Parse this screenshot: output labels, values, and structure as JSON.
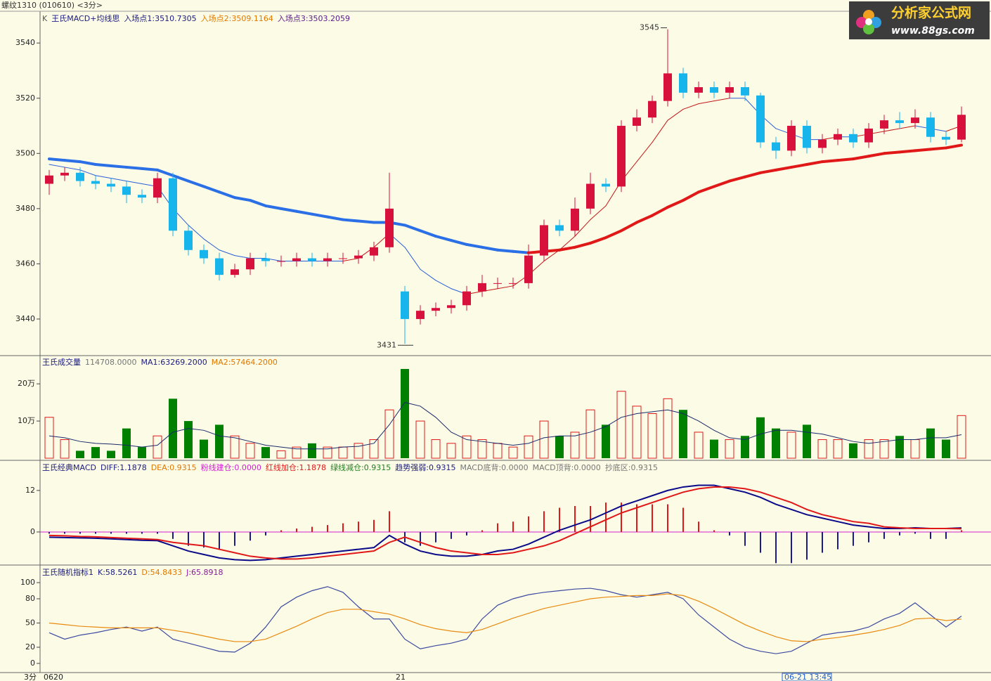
{
  "window": {
    "title": "螺纹1310 (010610) <3分>",
    "logo": {
      "name": "分析家公式网",
      "url": "www.88gs.com"
    }
  },
  "time_axis": {
    "unit": "3分",
    "labels": [
      "0620",
      "21"
    ],
    "cursor": "06-21 13:45"
  },
  "chart_data": [
    {
      "type": "candlestick",
      "legend": [
        "K",
        "王氏MACD+均线思",
        "入场点1:3510.7305",
        "入场点2:3509.1164",
        "入场点3:3503.2059"
      ],
      "legend_colors": [
        "#555555",
        "#1a1a80",
        "#1a1a80",
        "#e07800",
        "#5a1a8a"
      ],
      "open": [
        3489,
        3492,
        3493,
        3490,
        3489,
        3488,
        3485,
        3484,
        3491,
        3472,
        3465,
        3462,
        3456,
        3458,
        3462,
        3461,
        3461,
        3462,
        3461,
        3462,
        3462,
        3463,
        3466,
        3450,
        3440,
        3443,
        3444,
        3445,
        3450,
        3453,
        3453,
        3453,
        3463,
        3474,
        3472,
        3480,
        3489,
        3488,
        3510,
        3513,
        3519,
        3529,
        3522,
        3524,
        3522,
        3524,
        3521,
        3504,
        3501,
        3510,
        3502,
        3505,
        3507,
        3504,
        3509,
        3512,
        3511,
        3513,
        3506,
        3505
      ],
      "high": [
        3494,
        3495,
        3495,
        3492,
        3491,
        3490,
        3487,
        3493,
        3493,
        3474,
        3467,
        3464,
        3460,
        3464,
        3464,
        3463,
        3464,
        3464,
        3464,
        3464,
        3465,
        3468,
        3493,
        3452,
        3445,
        3446,
        3447,
        3452,
        3456,
        3455,
        3455,
        3467,
        3476,
        3476,
        3484,
        3493,
        3491,
        3512,
        3516,
        3521,
        3545,
        3531,
        3526,
        3526,
        3526,
        3526,
        3522,
        3506,
        3512,
        3512,
        3507,
        3509,
        3509,
        3511,
        3514,
        3515,
        3516,
        3515,
        3508,
        3517
      ],
      "low": [
        3485,
        3490,
        3488,
        3487,
        3486,
        3482,
        3482,
        3482,
        3470,
        3463,
        3460,
        3454,
        3455,
        3456,
        3459,
        3459,
        3459,
        3459,
        3459,
        3460,
        3460,
        3461,
        3464,
        3431,
        3438,
        3441,
        3442,
        3443,
        3448,
        3451,
        3451,
        3451,
        3461,
        3470,
        3470,
        3478,
        3486,
        3486,
        3508,
        3511,
        3517,
        3520,
        3520,
        3520,
        3520,
        3519,
        3502,
        3498,
        3499,
        3500,
        3500,
        3503,
        3502,
        3502,
        3507,
        3509,
        3509,
        3504,
        3503,
        3504
      ],
      "close": [
        3492,
        3493,
        3490,
        3489,
        3488,
        3485,
        3484,
        3491,
        3472,
        3465,
        3462,
        3456,
        3458,
        3462,
        3461,
        3461,
        3462,
        3461,
        3462,
        3462,
        3463,
        3466,
        3480,
        3440,
        3443,
        3444,
        3445,
        3450,
        3453,
        3453,
        3453,
        3463,
        3474,
        3472,
        3480,
        3489,
        3488,
        3510,
        3513,
        3519,
        3529,
        3522,
        3524,
        3522,
        3524,
        3521,
        3504,
        3501,
        3510,
        3502,
        3505,
        3507,
        3504,
        3509,
        3512,
        3511,
        3513,
        3506,
        3505,
        3514
      ],
      "up_color": "#d8103c",
      "down_color": "#18b4ec",
      "lines": [
        {
          "color": "#2a6fe6",
          "rising_color": "#e01818",
          "width": 4,
          "values": [
            3498,
            3497.5,
            3497,
            3496,
            3495.5,
            3495,
            3494.5,
            3494,
            3492,
            3490,
            3488,
            3486,
            3484,
            3483,
            3481,
            3480,
            3479,
            3478,
            3477,
            3476,
            3475.5,
            3475,
            3475,
            3474,
            3472,
            3470,
            3468.5,
            3467,
            3466,
            3465,
            3464.5,
            3464,
            3464.5,
            3465,
            3466,
            3467.5,
            3469.5,
            3472,
            3475,
            3477.5,
            3480.5,
            3483,
            3486,
            3488,
            3490,
            3491.5,
            3493,
            3494,
            3495,
            3496,
            3497,
            3497.5,
            3498,
            3499,
            3500,
            3500.5,
            3501,
            3501.5,
            3502,
            3503
          ]
        },
        {
          "color": "#2a5fd8",
          "rising_color": "#c41818",
          "width": 1,
          "values": [
            3496,
            3495,
            3494,
            3492,
            3491,
            3490,
            3489,
            3488,
            3480,
            3474,
            3469,
            3465,
            3463,
            3462,
            3462,
            3461,
            3461,
            3461,
            3461,
            3461,
            3462,
            3466,
            3471,
            3466,
            3458,
            3454,
            3451,
            3449,
            3450,
            3451,
            3452,
            3456,
            3461,
            3465,
            3470,
            3476,
            3481,
            3490,
            3497,
            3504,
            3512,
            3516,
            3518,
            3519,
            3520,
            3520,
            3514,
            3509,
            3507,
            3505,
            3505,
            3506,
            3506,
            3507,
            3508,
            3509,
            3510,
            3509,
            3508,
            3510
          ]
        }
      ],
      "annotations": {
        "high": "3545",
        "low": "3431"
      },
      "ylim": [
        3427,
        3551
      ],
      "yticks": [
        3440,
        3460,
        3480,
        3500,
        3520,
        3540
      ]
    },
    {
      "type": "bar",
      "legend": [
        "王氏成交量",
        "114708.0000",
        "MA1:63269.2000",
        "MA2:57464.2000"
      ],
      "legend_colors": [
        "#1a1a80",
        "#777777",
        "#1a1a80",
        "#e07800"
      ],
      "values": [
        110000,
        50000,
        20000,
        30000,
        20000,
        80000,
        30000,
        60000,
        160000,
        100000,
        50000,
        90000,
        60000,
        40000,
        30000,
        20000,
        30000,
        40000,
        30000,
        30000,
        40000,
        50000,
        130000,
        240000,
        100000,
        50000,
        40000,
        60000,
        50000,
        40000,
        30000,
        60000,
        100000,
        60000,
        70000,
        130000,
        90000,
        180000,
        140000,
        120000,
        160000,
        130000,
        70000,
        50000,
        50000,
        60000,
        110000,
        80000,
        70000,
        90000,
        50000,
        50000,
        40000,
        50000,
        50000,
        60000,
        50000,
        80000,
        50000,
        114708
      ],
      "ma": {
        "color": "#1a2a6a",
        "values": [
          60000,
          55000,
          45000,
          40000,
          38000,
          35000,
          30000,
          35000,
          70000,
          80000,
          75000,
          60000,
          55000,
          45000,
          35000,
          30000,
          25000,
          25000,
          25000,
          30000,
          32000,
          40000,
          90000,
          150000,
          140000,
          110000,
          70000,
          50000,
          45000,
          40000,
          35000,
          40000,
          55000,
          60000,
          60000,
          70000,
          85000,
          110000,
          120000,
          125000,
          130000,
          120000,
          100000,
          75000,
          55000,
          50000,
          65000,
          75000,
          75000,
          70000,
          65000,
          55000,
          45000,
          40000,
          45000,
          50000,
          50000,
          55000,
          55000,
          63269.2
        ]
      },
      "up_color": "#e01818",
      "down_color": "#008000",
      "ylim": [
        0,
        274000
      ],
      "yticks": [
        {
          "value": 100000,
          "label": "10万"
        },
        {
          "value": 200000,
          "label": "20万"
        }
      ]
    },
    {
      "type": "macd",
      "legend": [
        "王氏经典MACD",
        "DIFF:1.1878",
        "DEA:0.9315",
        "粉线建仓:0.0000",
        "红线加仓:1.1878",
        "绿线减仓:0.9315",
        "趋势强弱:0.9315",
        "MACD底背:0.0000",
        "MACD顶背:0.0000",
        "抄底区:0.9315"
      ],
      "legend_colors": [
        "#1a1a80",
        "#1a1a80",
        "#e07800",
        "#d020d0",
        "#e01818",
        "#208020",
        "#1a1a80",
        "#777777",
        "#777777",
        "#777777"
      ],
      "histogram": [
        -0.5,
        -0.5,
        -0.5,
        -0.5,
        -0.5,
        -0.5,
        -0.5,
        -0.5,
        -2,
        -4,
        -4.5,
        -5,
        -4,
        -2.5,
        -1,
        0.5,
        1,
        1.5,
        2,
        2.5,
        3,
        3.5,
        6,
        -3,
        -4,
        -3,
        -2,
        -1,
        0.5,
        2.5,
        3,
        4.5,
        6,
        7,
        7.5,
        7.5,
        8.5,
        8.5,
        8,
        8,
        8,
        7,
        3,
        0.5,
        -1,
        -4,
        -6,
        -9,
        -9,
        -8,
        -6,
        -5,
        -4,
        -3,
        -2,
        -1,
        -0.5,
        -2,
        -2,
        0.5
      ],
      "up_color": "#e01818",
      "down_color": "#1a1a90",
      "series": [
        {
          "color": "#0a0a8a",
          "values": [
            -1.5,
            -1.6,
            -1.7,
            -1.8,
            -2,
            -2.2,
            -2.4,
            -2.5,
            -4,
            -5.5,
            -6.5,
            -7.5,
            -8,
            -8.2,
            -8,
            -7.5,
            -7,
            -6.5,
            -6,
            -5.5,
            -5,
            -4.5,
            -1,
            -3.5,
            -5.5,
            -6.5,
            -7,
            -7,
            -6.5,
            -5.5,
            -5,
            -3.5,
            -1.5,
            0.5,
            2,
            3.5,
            5.5,
            7.5,
            9,
            10.5,
            12,
            13,
            13.5,
            13.5,
            12.5,
            11.5,
            10,
            8,
            6.5,
            5,
            4,
            3,
            2,
            1.5,
            1,
            1,
            1.2,
            1,
            1,
            1.1878
          ]
        },
        {
          "color": "#e01818",
          "values": [
            -1,
            -1.1,
            -1.3,
            -1.4,
            -1.6,
            -1.8,
            -2,
            -2.2,
            -3,
            -3.5,
            -4,
            -5,
            -6,
            -7,
            -7.5,
            -7.8,
            -7.8,
            -7.5,
            -7,
            -6.5,
            -6,
            -5.5,
            -3,
            -1.5,
            -3,
            -4.5,
            -5.5,
            -6,
            -6.5,
            -6.5,
            -6,
            -5,
            -4,
            -2.5,
            -0.5,
            1.5,
            3.5,
            5.5,
            7,
            8.5,
            10,
            11.5,
            12.5,
            13,
            13,
            12.5,
            11.5,
            10,
            8.5,
            6.5,
            5,
            4,
            3,
            2.5,
            1.5,
            1.2,
            1,
            1,
            1,
            0.9315
          ]
        }
      ],
      "ylim": [
        -9.35,
        20.3
      ],
      "yticks": [
        0,
        12
      ]
    },
    {
      "type": "line",
      "legend": [
        "王氏随机指标1",
        "K:58.5261",
        "D:54.8433",
        "J:65.8918"
      ],
      "legend_colors": [
        "#1a1a80",
        "#1a1a80",
        "#e07800",
        "#8a1a9a"
      ],
      "series": [
        {
          "color": "#3b4aa0",
          "values": [
            38,
            30,
            35,
            38,
            42,
            45,
            40,
            45,
            30,
            25,
            20,
            15,
            14,
            25,
            45,
            70,
            82,
            90,
            95,
            88,
            70,
            55,
            55,
            30,
            18,
            22,
            25,
            30,
            55,
            72,
            80,
            85,
            88,
            90,
            92,
            93,
            90,
            85,
            82,
            85,
            88,
            80,
            60,
            45,
            30,
            20,
            15,
            12,
            15,
            25,
            35,
            38,
            40,
            45,
            55,
            62,
            75,
            60,
            45,
            58.5261
          ]
        },
        {
          "color": "#e88a10",
          "values": [
            50,
            48,
            46,
            45,
            44,
            44,
            44,
            44,
            41,
            38,
            34,
            30,
            27,
            27,
            30,
            38,
            46,
            55,
            63,
            67,
            67,
            64,
            61,
            55,
            48,
            43,
            40,
            38,
            42,
            49,
            56,
            62,
            68,
            72,
            76,
            80,
            82,
            83,
            84,
            84,
            86,
            84,
            77,
            68,
            58,
            48,
            40,
            33,
            28,
            27,
            30,
            32,
            35,
            38,
            42,
            47,
            55,
            56,
            53,
            54.8433
          ]
        }
      ],
      "ylim": [
        -9.6,
        120
      ],
      "yticks": [
        0,
        20,
        50,
        80,
        100
      ]
    }
  ]
}
